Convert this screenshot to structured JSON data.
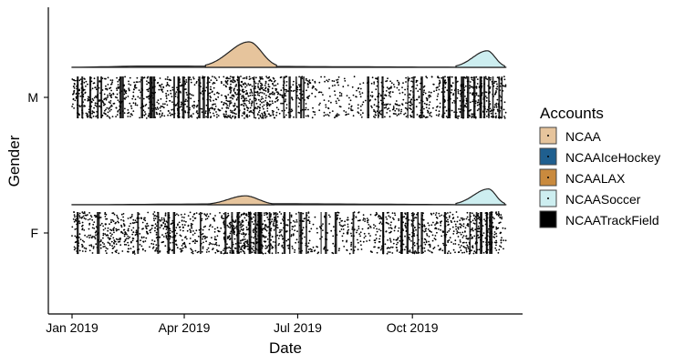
{
  "chart_data": {
    "type": "scatter",
    "subtype": "raincloud (half-density + jittered points)",
    "title": "",
    "xlabel": "Date",
    "ylabel": "Gender",
    "x_ticks": [
      "Jan 2019",
      "Apr 2019",
      "Jul 2019",
      "Oct 2019"
    ],
    "x_range": [
      "2019-01-01",
      "2019-12-15"
    ],
    "y_categories": [
      "F",
      "M"
    ],
    "grid": false,
    "legend": {
      "title": "Accounts",
      "position": "right",
      "entries": [
        {
          "name": "NCAA",
          "color": "#e6c49c"
        },
        {
          "name": "NCAAIceHockey",
          "color": "#1f5f8f"
        },
        {
          "name": "NCAALAX",
          "color": "#c98a3e"
        },
        {
          "name": "NCAASoccer",
          "color": "#cdeef0"
        },
        {
          "name": "NCAATrackField",
          "color": "#000000"
        }
      ]
    },
    "densities": [
      {
        "category": "M",
        "series": "NCAATrackField",
        "color": "#ffffff",
        "peak_date": "2019-03-01",
        "relative_height": 0.05,
        "start": "2019-01-01",
        "end": "2019-12-15"
      },
      {
        "category": "M",
        "series": "NCAA",
        "color": "#e6c49c",
        "peak_date": "2019-05-23",
        "relative_height": 1.0,
        "start": "2019-04-18",
        "end": "2019-06-14"
      },
      {
        "category": "M",
        "series": "NCAASoccer",
        "color": "#cdeef0",
        "peak_date": "2019-11-30",
        "relative_height": 0.65,
        "start": "2019-11-05",
        "end": "2019-12-14"
      },
      {
        "category": "F",
        "series": "NCAATrackField",
        "color": "#ffffff",
        "peak_date": "2019-06-01",
        "relative_height": 0.04,
        "start": "2019-01-01",
        "end": "2019-12-15"
      },
      {
        "category": "F",
        "series": "NCAA",
        "color": "#e6c49c",
        "peak_date": "2019-05-20",
        "relative_height": 0.35,
        "start": "2019-04-20",
        "end": "2019-06-12"
      },
      {
        "category": "F",
        "series": "NCAASoccer",
        "color": "#cdeef0",
        "peak_date": "2019-12-01",
        "relative_height": 0.62,
        "start": "2019-11-05",
        "end": "2019-12-14"
      }
    ],
    "points": {
      "series": "NCAATrackField",
      "color": "#000000",
      "x_range": [
        "2019-01-01",
        "2019-12-15"
      ],
      "categories": [
        "M",
        "F"
      ]
    }
  }
}
